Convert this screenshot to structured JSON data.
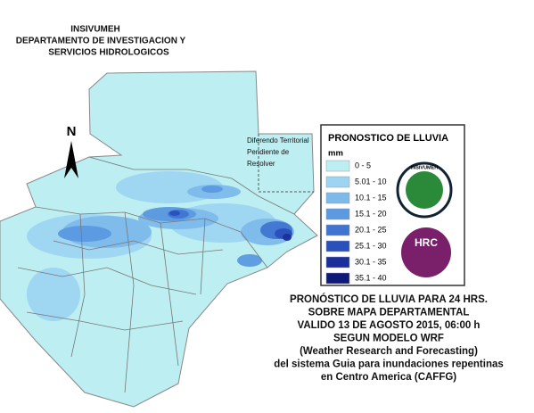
{
  "header": {
    "lines": [
      "INSIVUMEH",
      "DEPARTAMENTO DE INVESTIGACION Y",
      "SERVICIOS HIDROLOGICOS"
    ]
  },
  "north": "N",
  "territory_note": [
    "Diferendo Territorial",
    "Pendiente de",
    "Resolver"
  ],
  "legend": {
    "title": "PRONOSTICO DE LLUVIA",
    "unit": "mm",
    "items": [
      {
        "label": "0 - 5",
        "color": "#bdeef2"
      },
      {
        "label": "5.01 - 10",
        "color": "#9dd4f1"
      },
      {
        "label": "10.1 - 15",
        "color": "#7db9ea"
      },
      {
        "label": "15.1 - 20",
        "color": "#5b99e0"
      },
      {
        "label": "20.1 - 25",
        "color": "#3f75d1"
      },
      {
        "label": "25.1 - 30",
        "color": "#2a50bb"
      },
      {
        "label": "30.1 - 35",
        "color": "#1b2f9c"
      },
      {
        "label": "35.1 - 40",
        "color": "#0e1a78"
      }
    ]
  },
  "logos": [
    "INSIVUMEH",
    "HRC"
  ],
  "caption": [
    "PRONÓSTICO DE LLUVIA PARA 24 HRS.",
    "SOBRE MAPA DEPARTAMENTAL",
    "VALIDO 13 DE AGOSTO 2015, 06:00 h",
    "SEGUN MODELO WRF",
    "(Weather Research and Forecasting)",
    "del sistema Guia  para inundaciones repentinas",
    "en Centro America (CAFFG)"
  ]
}
